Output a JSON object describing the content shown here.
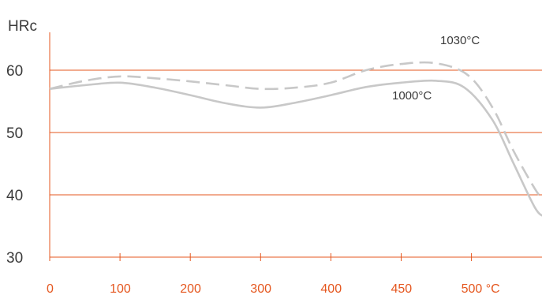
{
  "chart_data": {
    "type": "line",
    "title": "",
    "xlabel": "",
    "ylabel": "HRc",
    "ylim": [
      30,
      65
    ],
    "grid": true,
    "y_ticks": [
      {
        "value": 30,
        "label": "30"
      },
      {
        "value": 40,
        "label": "40"
      },
      {
        "value": 50,
        "label": "50"
      },
      {
        "value": 60,
        "label": "60"
      }
    ],
    "x_ticks": [
      {
        "label": "0"
      },
      {
        "label": "100"
      },
      {
        "label": "200"
      },
      {
        "label": "300"
      },
      {
        "label": "400"
      },
      {
        "label": "450"
      },
      {
        "label": "500 °C"
      }
    ],
    "series": [
      {
        "name": "1000°C",
        "style": "solid",
        "color": "#c8c8c8",
        "points": [
          [
            0,
            57
          ],
          [
            0.5,
            57.6
          ],
          [
            1,
            58
          ],
          [
            1.5,
            57.2
          ],
          [
            2,
            56
          ],
          [
            2.5,
            54.7
          ],
          [
            3,
            54
          ],
          [
            3.5,
            54.8
          ],
          [
            4,
            56
          ],
          [
            4.5,
            57.3
          ],
          [
            5,
            58
          ],
          [
            5.5,
            58.3
          ],
          [
            5.9,
            57.2
          ],
          [
            6.3,
            52
          ],
          [
            6.6,
            45
          ],
          [
            6.9,
            38
          ],
          [
            7.03,
            36.5
          ]
        ]
      },
      {
        "name": "1030°C",
        "style": "dashed",
        "color": "#c8c8c8",
        "points": [
          [
            0,
            57
          ],
          [
            0.5,
            58.3
          ],
          [
            1,
            59
          ],
          [
            1.5,
            58.7
          ],
          [
            2,
            58.2
          ],
          [
            2.5,
            57.6
          ],
          [
            3,
            57
          ],
          [
            3.5,
            57.2
          ],
          [
            4,
            58
          ],
          [
            4.5,
            60
          ],
          [
            5,
            61
          ],
          [
            5.5,
            61.1
          ],
          [
            5.95,
            59.2
          ],
          [
            6.3,
            54
          ],
          [
            6.6,
            47
          ],
          [
            6.9,
            41
          ],
          [
            7.03,
            39
          ]
        ]
      }
    ]
  },
  "colors": {
    "axis": "#e5571f",
    "grid": "#e5571f",
    "text": "#3a3a3a",
    "line": "#c8c8c8"
  }
}
